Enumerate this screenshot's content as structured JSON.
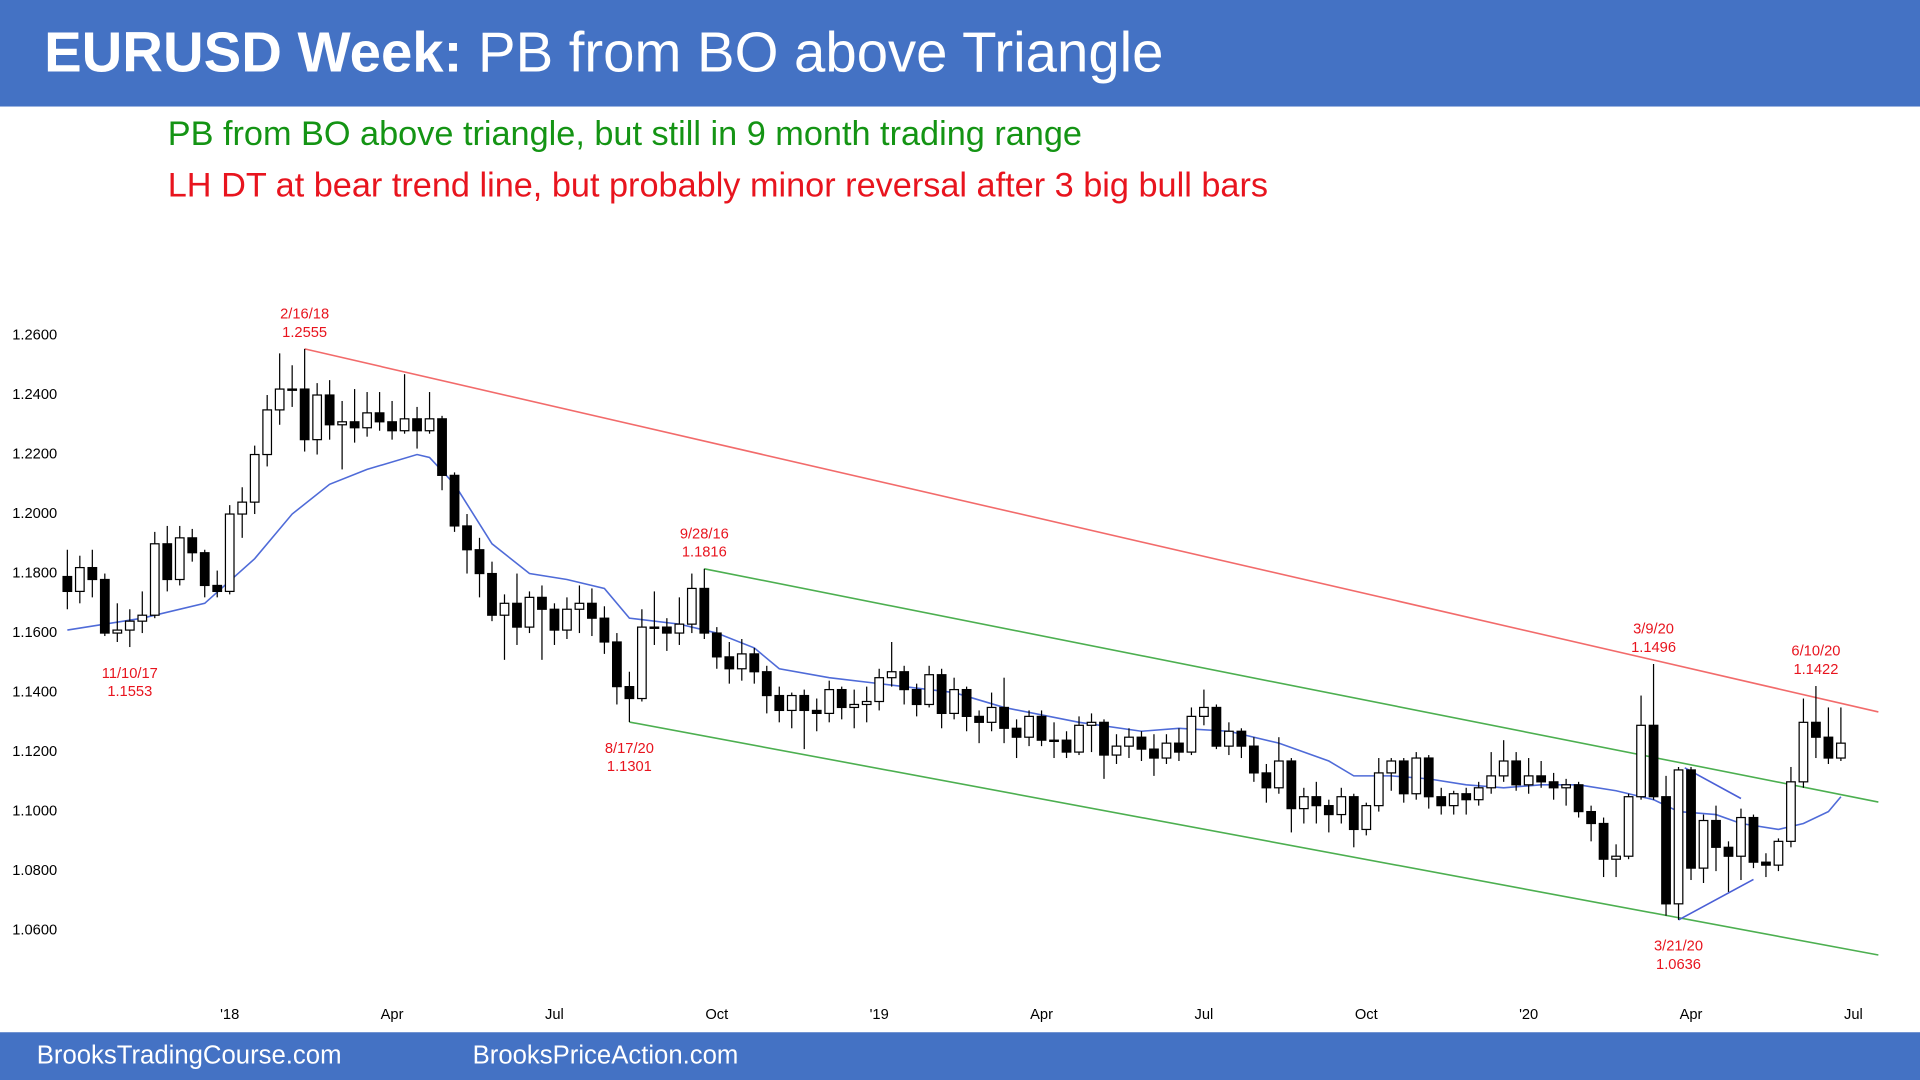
{
  "header": {
    "title_bold": "EURUSD Week:",
    "title": "PB from BO above Triangle"
  },
  "chart_data": {
    "type": "candlestick",
    "subtitles": [
      {
        "text": "PB from BO above triangle, but still in 9 month trading range",
        "color": "#149414"
      },
      {
        "text": "LH DT at bear trend line, but probably minor reversal after 3 big bull bars",
        "color": "#e8141e"
      }
    ],
    "ylim": [
      1.04,
      1.29
    ],
    "yticks": [
      {
        "value": 1.06,
        "label": "1.0600"
      },
      {
        "value": 1.08,
        "label": "1.0800"
      },
      {
        "value": 1.1,
        "label": "1.1000"
      },
      {
        "value": 1.12,
        "label": "1.1200"
      },
      {
        "value": 1.14,
        "label": "1.1400"
      },
      {
        "value": 1.16,
        "label": "1.1600"
      },
      {
        "value": 1.18,
        "label": "1.1800"
      },
      {
        "value": 1.2,
        "label": "1.2000"
      },
      {
        "value": 1.22,
        "label": "1.2200"
      },
      {
        "value": 1.24,
        "label": "1.2400"
      },
      {
        "value": 1.26,
        "label": "1.2600"
      }
    ],
    "categories": [
      null,
      null,
      null,
      null,
      null,
      null,
      null,
      null,
      null,
      null,
      null,
      null,
      null,
      "'18",
      null,
      null,
      null,
      null,
      null,
      null,
      null,
      null,
      null,
      null,
      null,
      null,
      "Apr",
      null,
      null,
      null,
      null,
      null,
      null,
      null,
      null,
      null,
      null,
      null,
      null,
      "Jul",
      null,
      null,
      null,
      null,
      null,
      null,
      null,
      null,
      null,
      null,
      null,
      null,
      "Oct",
      null,
      null,
      null,
      null,
      null,
      null,
      null,
      null,
      null,
      null,
      null,
      null,
      "'19",
      null,
      null,
      null,
      null,
      null,
      null,
      null,
      null,
      null,
      null,
      null,
      null,
      "Apr",
      null,
      null,
      null,
      null,
      null,
      null,
      null,
      null,
      null,
      null,
      null,
      null,
      "Jul",
      null,
      null,
      null,
      null,
      null,
      null,
      null,
      null,
      null,
      null,
      null,
      null,
      "Oct",
      null,
      null,
      null,
      null,
      null,
      null,
      null,
      null,
      null,
      null,
      null,
      null,
      "'20",
      null,
      null,
      null,
      null,
      null,
      null,
      null,
      null,
      null,
      null,
      null,
      null,
      "Apr",
      null,
      null,
      null,
      null,
      null,
      null,
      null,
      null,
      null,
      null,
      null,
      null,
      "Jul"
    ],
    "ohlc": [
      [
        1.179,
        1.188,
        1.168,
        1.174
      ],
      [
        1.174,
        1.186,
        1.17,
        1.182
      ],
      [
        1.182,
        1.188,
        1.172,
        1.178
      ],
      [
        1.178,
        1.18,
        1.159,
        1.16
      ],
      [
        1.16,
        1.17,
        1.157,
        1.161
      ],
      [
        1.161,
        1.168,
        1.1553,
        1.164
      ],
      [
        1.164,
        1.174,
        1.16,
        1.166
      ],
      [
        1.166,
        1.194,
        1.165,
        1.19
      ],
      [
        1.19,
        1.196,
        1.174,
        1.178
      ],
      [
        1.178,
        1.196,
        1.176,
        1.192
      ],
      [
        1.192,
        1.195,
        1.184,
        1.187
      ],
      [
        1.187,
        1.188,
        1.172,
        1.176
      ],
      [
        1.176,
        1.181,
        1.172,
        1.174
      ],
      [
        1.174,
        1.203,
        1.173,
        1.2
      ],
      [
        1.2,
        1.209,
        1.192,
        1.204
      ],
      [
        1.204,
        1.223,
        1.2,
        1.22
      ],
      [
        1.22,
        1.24,
        1.216,
        1.235
      ],
      [
        1.235,
        1.254,
        1.23,
        1.242
      ],
      [
        1.242,
        1.25,
        1.236,
        1.242
      ],
      [
        1.242,
        1.2555,
        1.221,
        1.225
      ],
      [
        1.225,
        1.244,
        1.22,
        1.24
      ],
      [
        1.24,
        1.245,
        1.225,
        1.23
      ],
      [
        1.23,
        1.238,
        1.215,
        1.231
      ],
      [
        1.231,
        1.242,
        1.224,
        1.229
      ],
      [
        1.229,
        1.241,
        1.226,
        1.234
      ],
      [
        1.234,
        1.241,
        1.228,
        1.231
      ],
      [
        1.231,
        1.238,
        1.225,
        1.228
      ],
      [
        1.228,
        1.247,
        1.227,
        1.232
      ],
      [
        1.232,
        1.236,
        1.222,
        1.228
      ],
      [
        1.228,
        1.241,
        1.227,
        1.232
      ],
      [
        1.232,
        1.233,
        1.208,
        1.213
      ],
      [
        1.213,
        1.214,
        1.194,
        1.196
      ],
      [
        1.196,
        1.2,
        1.18,
        1.188
      ],
      [
        1.188,
        1.192,
        1.172,
        1.18
      ],
      [
        1.18,
        1.184,
        1.164,
        1.166
      ],
      [
        1.166,
        1.173,
        1.151,
        1.17
      ],
      [
        1.17,
        1.18,
        1.156,
        1.162
      ],
      [
        1.162,
        1.174,
        1.16,
        1.172
      ],
      [
        1.172,
        1.176,
        1.151,
        1.168
      ],
      [
        1.168,
        1.17,
        1.156,
        1.161
      ],
      [
        1.161,
        1.172,
        1.158,
        1.168
      ],
      [
        1.168,
        1.176,
        1.16,
        1.17
      ],
      [
        1.17,
        1.175,
        1.159,
        1.165
      ],
      [
        1.165,
        1.169,
        1.153,
        1.157
      ],
      [
        1.157,
        1.16,
        1.136,
        1.142
      ],
      [
        1.142,
        1.147,
        1.1301,
        1.138
      ],
      [
        1.138,
        1.168,
        1.137,
        1.162
      ],
      [
        1.162,
        1.174,
        1.156,
        1.162
      ],
      [
        1.162,
        1.165,
        1.154,
        1.16
      ],
      [
        1.16,
        1.172,
        1.156,
        1.163
      ],
      [
        1.163,
        1.18,
        1.16,
        1.175
      ],
      [
        1.175,
        1.1816,
        1.158,
        1.16
      ],
      [
        1.16,
        1.162,
        1.148,
        1.152
      ],
      [
        1.152,
        1.157,
        1.143,
        1.148
      ],
      [
        1.148,
        1.158,
        1.144,
        1.153
      ],
      [
        1.153,
        1.155,
        1.143,
        1.147
      ],
      [
        1.147,
        1.149,
        1.133,
        1.139
      ],
      [
        1.139,
        1.142,
        1.13,
        1.134
      ],
      [
        1.134,
        1.14,
        1.128,
        1.139
      ],
      [
        1.139,
        1.141,
        1.121,
        1.134
      ],
      [
        1.134,
        1.138,
        1.127,
        1.133
      ],
      [
        1.133,
        1.144,
        1.13,
        1.141
      ],
      [
        1.141,
        1.142,
        1.131,
        1.135
      ],
      [
        1.135,
        1.141,
        1.128,
        1.136
      ],
      [
        1.136,
        1.142,
        1.13,
        1.137
      ],
      [
        1.137,
        1.148,
        1.134,
        1.145
      ],
      [
        1.145,
        1.157,
        1.142,
        1.147
      ],
      [
        1.147,
        1.149,
        1.136,
        1.141
      ],
      [
        1.141,
        1.143,
        1.132,
        1.136
      ],
      [
        1.136,
        1.149,
        1.135,
        1.146
      ],
      [
        1.146,
        1.148,
        1.128,
        1.133
      ],
      [
        1.133,
        1.145,
        1.131,
        1.141
      ],
      [
        1.141,
        1.142,
        1.127,
        1.132
      ],
      [
        1.132,
        1.134,
        1.123,
        1.13
      ],
      [
        1.13,
        1.14,
        1.127,
        1.135
      ],
      [
        1.135,
        1.145,
        1.123,
        1.128
      ],
      [
        1.128,
        1.131,
        1.118,
        1.125
      ],
      [
        1.125,
        1.134,
        1.122,
        1.132
      ],
      [
        1.132,
        1.134,
        1.122,
        1.124
      ],
      [
        1.124,
        1.13,
        1.118,
        1.124
      ],
      [
        1.124,
        1.127,
        1.118,
        1.12
      ],
      [
        1.12,
        1.132,
        1.119,
        1.129
      ],
      [
        1.129,
        1.133,
        1.12,
        1.13
      ],
      [
        1.13,
        1.131,
        1.111,
        1.119
      ],
      [
        1.119,
        1.126,
        1.116,
        1.122
      ],
      [
        1.122,
        1.128,
        1.118,
        1.125
      ],
      [
        1.125,
        1.127,
        1.117,
        1.121
      ],
      [
        1.121,
        1.126,
        1.112,
        1.118
      ],
      [
        1.118,
        1.126,
        1.116,
        1.123
      ],
      [
        1.123,
        1.128,
        1.117,
        1.12
      ],
      [
        1.12,
        1.135,
        1.119,
        1.132
      ],
      [
        1.132,
        1.141,
        1.129,
        1.135
      ],
      [
        1.135,
        1.136,
        1.121,
        1.122
      ],
      [
        1.122,
        1.13,
        1.119,
        1.127
      ],
      [
        1.127,
        1.128,
        1.118,
        1.122
      ],
      [
        1.122,
        1.125,
        1.11,
        1.113
      ],
      [
        1.113,
        1.116,
        1.103,
        1.108
      ],
      [
        1.108,
        1.125,
        1.106,
        1.117
      ],
      [
        1.117,
        1.118,
        1.093,
        1.101
      ],
      [
        1.101,
        1.108,
        1.096,
        1.105
      ],
      [
        1.105,
        1.11,
        1.096,
        1.102
      ],
      [
        1.102,
        1.104,
        1.093,
        1.099
      ],
      [
        1.099,
        1.108,
        1.096,
        1.105
      ],
      [
        1.105,
        1.106,
        1.088,
        1.094
      ],
      [
        1.094,
        1.103,
        1.092,
        1.102
      ],
      [
        1.102,
        1.118,
        1.1,
        1.113
      ],
      [
        1.113,
        1.118,
        1.107,
        1.117
      ],
      [
        1.117,
        1.118,
        1.103,
        1.106
      ],
      [
        1.106,
        1.12,
        1.104,
        1.118
      ],
      [
        1.118,
        1.119,
        1.101,
        1.105
      ],
      [
        1.105,
        1.108,
        1.099,
        1.102
      ],
      [
        1.102,
        1.107,
        1.099,
        1.106
      ],
      [
        1.106,
        1.108,
        1.099,
        1.104
      ],
      [
        1.104,
        1.11,
        1.102,
        1.108
      ],
      [
        1.108,
        1.12,
        1.106,
        1.112
      ],
      [
        1.112,
        1.124,
        1.11,
        1.117
      ],
      [
        1.117,
        1.12,
        1.107,
        1.109
      ],
      [
        1.109,
        1.118,
        1.106,
        1.112
      ],
      [
        1.112,
        1.117,
        1.108,
        1.11
      ],
      [
        1.11,
        1.113,
        1.104,
        1.108
      ],
      [
        1.108,
        1.111,
        1.102,
        1.109
      ],
      [
        1.109,
        1.11,
        1.098,
        1.1
      ],
      [
        1.1,
        1.102,
        1.09,
        1.096
      ],
      [
        1.096,
        1.098,
        1.078,
        1.084
      ],
      [
        1.084,
        1.089,
        1.078,
        1.085
      ],
      [
        1.085,
        1.106,
        1.084,
        1.105
      ],
      [
        1.105,
        1.139,
        1.104,
        1.129
      ],
      [
        1.129,
        1.1496,
        1.104,
        1.105
      ],
      [
        1.105,
        1.112,
        1.065,
        1.069
      ],
      [
        1.069,
        1.115,
        1.0636,
        1.114
      ],
      [
        1.114,
        1.115,
        1.077,
        1.081
      ],
      [
        1.081,
        1.099,
        1.076,
        1.097
      ],
      [
        1.097,
        1.102,
        1.08,
        1.088
      ],
      [
        1.088,
        1.09,
        1.073,
        1.085
      ],
      [
        1.085,
        1.101,
        1.077,
        1.098
      ],
      [
        1.098,
        1.099,
        1.081,
        1.083
      ],
      [
        1.083,
        1.086,
        1.078,
        1.082
      ],
      [
        1.082,
        1.091,
        1.08,
        1.09
      ],
      [
        1.09,
        1.115,
        1.088,
        1.11
      ],
      [
        1.11,
        1.138,
        1.108,
        1.13
      ],
      [
        1.13,
        1.1422,
        1.118,
        1.125
      ],
      [
        1.125,
        1.135,
        1.116,
        1.118
      ],
      [
        1.118,
        1.135,
        1.117,
        1.123
      ],
      null
    ],
    "up_color": "#ffffff",
    "down_color": "#000000",
    "moving_average": {
      "color": "#4f6bd8",
      "x": [
        0,
        6,
        11,
        15,
        18,
        21,
        24,
        28,
        29,
        31,
        34,
        37,
        40,
        43,
        45,
        49,
        52,
        55,
        57,
        61,
        65,
        71,
        75,
        81,
        86,
        89,
        93,
        97,
        101,
        103,
        106,
        109,
        112,
        115,
        118,
        121,
        124,
        127,
        129,
        132,
        134,
        137,
        139,
        141,
        142
      ],
      "y": [
        1.161,
        1.165,
        1.17,
        1.185,
        1.2,
        1.21,
        1.215,
        1.22,
        1.219,
        1.21,
        1.19,
        1.18,
        1.178,
        1.175,
        1.165,
        1.163,
        1.16,
        1.155,
        1.148,
        1.145,
        1.143,
        1.14,
        1.135,
        1.13,
        1.127,
        1.128,
        1.127,
        1.123,
        1.117,
        1.112,
        1.112,
        1.111,
        1.109,
        1.108,
        1.109,
        1.109,
        1.107,
        1.104,
        1.1,
        1.099,
        1.096,
        1.094,
        1.096,
        1.1,
        1.105
      ]
    },
    "lines": [
      {
        "color": "#f26b6b",
        "x": [
          19,
          145
        ],
        "y": [
          1.2555,
          1.1335
        ]
      },
      {
        "color": "#4caf50",
        "x": [
          51,
          145
        ],
        "y": [
          1.1816,
          1.1032
        ]
      },
      {
        "color": "#4caf50",
        "x": [
          45,
          145
        ],
        "y": [
          1.1301,
          1.0518
        ]
      },
      {
        "color": "#4a5fd6",
        "x": [
          129,
          135
        ],
        "y": [
          1.0636,
          1.0772
        ]
      },
      {
        "color": "#4a5fd6",
        "x": [
          129.5,
          134
        ],
        "y": [
          1.1147,
          1.1044
        ]
      }
    ],
    "annotations": [
      {
        "date": "2/16/18",
        "price": 1.2555
      },
      {
        "date": "11/10/17",
        "price": 1.1553
      },
      {
        "date": "9/28/16",
        "price": 1.1816
      },
      {
        "date": "8/17/20",
        "price": 1.1301
      },
      {
        "date": "3/9/20",
        "price": 1.1496
      },
      {
        "date": "3/21/20",
        "price": 1.0636
      },
      {
        "date": "6/10/20",
        "price": 1.1422
      }
    ],
    "annotation_color": "#e8141e"
  },
  "footer": {
    "left": "BrooksTradingCourse.com",
    "right": "BrooksPriceAction.com"
  }
}
